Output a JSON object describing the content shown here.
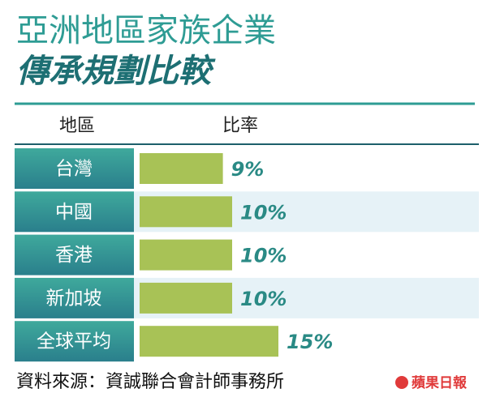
{
  "chart_data": {
    "type": "bar",
    "title": "亞洲地區家族企業",
    "subtitle": "傳承規劃比較",
    "category_header": "地區",
    "value_header": "比率",
    "categories": [
      "台灣",
      "中國",
      "香港",
      "新加坡",
      "全球平均"
    ],
    "values": [
      9,
      10,
      10,
      10,
      15
    ],
    "value_labels": [
      "9%",
      "10%",
      "10%",
      "10%",
      "15%"
    ],
    "color": "#a8c256",
    "source": "資料來源：資誠聯合會計師事務所",
    "logo": "蘋果日報"
  }
}
